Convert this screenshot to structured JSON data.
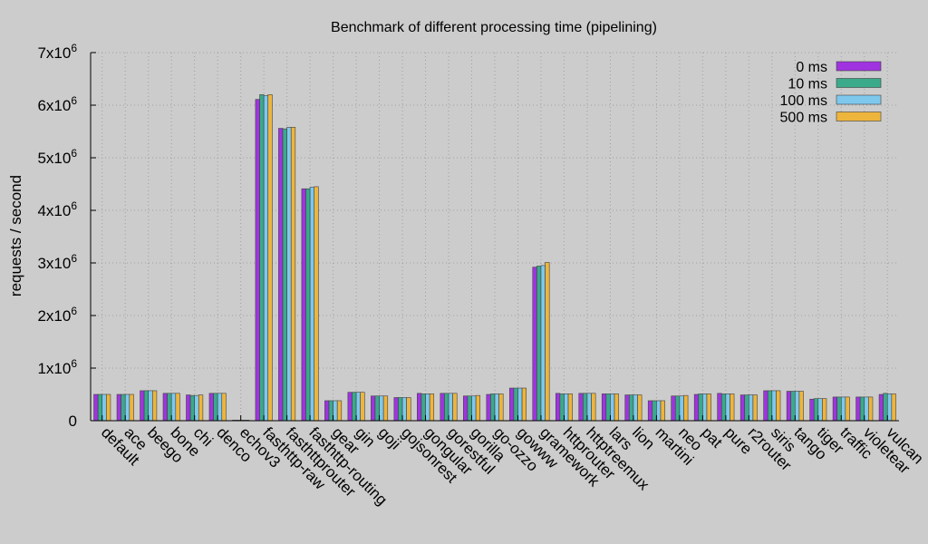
{
  "chart_data": {
    "type": "bar",
    "title": "Benchmark of different processing time (pipelining)",
    "ylabel": "requests / second",
    "xlabel": "",
    "ylim": [
      0,
      7000000
    ],
    "yticks": [
      {
        "value": 0,
        "mant": "0",
        "exp": ""
      },
      {
        "value": 1000000,
        "mant": "1x10",
        "exp": "6"
      },
      {
        "value": 2000000,
        "mant": "2x10",
        "exp": "6"
      },
      {
        "value": 3000000,
        "mant": "3x10",
        "exp": "6"
      },
      {
        "value": 4000000,
        "mant": "4x10",
        "exp": "6"
      },
      {
        "value": 5000000,
        "mant": "5x10",
        "exp": "6"
      },
      {
        "value": 6000000,
        "mant": "6x10",
        "exp": "6"
      },
      {
        "value": 7000000,
        "mant": "7x10",
        "exp": "6"
      }
    ],
    "grid": true,
    "legend_position": "top-right",
    "categories": [
      "default",
      "ace",
      "beego",
      "bone",
      "chi",
      "denco",
      "echov3",
      "fasthttp-raw",
      "fasthttprouter",
      "fasthttp-routing",
      "gear",
      "gin",
      "goji",
      "gojsonrest",
      "gongular",
      "gorestful",
      "gorilla",
      "go-ozzo",
      "gowww",
      "gramework",
      "httprouter",
      "httptreemux",
      "lars",
      "lion",
      "martini",
      "neo",
      "pat",
      "pure",
      "r2router",
      "siris",
      "tango",
      "tiger",
      "traffic",
      "violetear",
      "vulcan"
    ],
    "series": [
      {
        "name": "0 ms",
        "color": "#a033e0",
        "values": [
          500000,
          500000,
          570000,
          520000,
          490000,
          520000,
          10000,
          6110000,
          5560000,
          4410000,
          380000,
          540000,
          470000,
          440000,
          520000,
          520000,
          470000,
          500000,
          620000,
          2920000,
          520000,
          520000,
          510000,
          490000,
          380000,
          470000,
          500000,
          520000,
          490000,
          570000,
          560000,
          410000,
          450000,
          450000,
          500000
        ]
      },
      {
        "name": "10 ms",
        "color": "#3aaa8a",
        "values": [
          500000,
          500000,
          570000,
          520000,
          480000,
          520000,
          10000,
          6200000,
          5550000,
          4410000,
          380000,
          540000,
          470000,
          440000,
          510000,
          520000,
          470000,
          510000,
          620000,
          2940000,
          510000,
          520000,
          510000,
          490000,
          380000,
          470000,
          510000,
          510000,
          490000,
          570000,
          560000,
          420000,
          450000,
          450000,
          520000
        ]
      },
      {
        "name": "100 ms",
        "color": "#7ec8ee",
        "values": [
          500000,
          500000,
          570000,
          520000,
          480000,
          520000,
          10000,
          6180000,
          5580000,
          4440000,
          380000,
          540000,
          470000,
          440000,
          510000,
          520000,
          470000,
          510000,
          620000,
          2950000,
          510000,
          520000,
          510000,
          490000,
          380000,
          470000,
          510000,
          510000,
          490000,
          570000,
          560000,
          420000,
          450000,
          450000,
          510000
        ]
      },
      {
        "name": "500 ms",
        "color": "#eeb53c",
        "values": [
          500000,
          500000,
          570000,
          520000,
          490000,
          520000,
          10000,
          6200000,
          5580000,
          4450000,
          380000,
          540000,
          470000,
          440000,
          510000,
          520000,
          480000,
          510000,
          620000,
          3010000,
          510000,
          520000,
          510000,
          490000,
          380000,
          480000,
          510000,
          510000,
          490000,
          570000,
          560000,
          420000,
          450000,
          450000,
          510000
        ]
      }
    ]
  }
}
